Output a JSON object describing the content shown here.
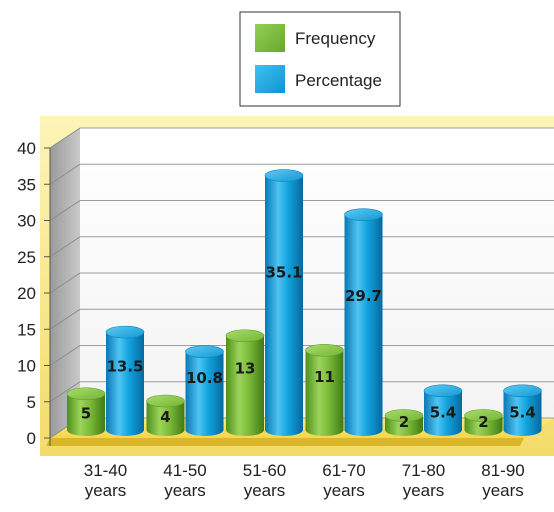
{
  "chart_data": {
    "type": "bar",
    "categories": [
      "31-40 years",
      "41-50 years",
      "51-60 years",
      "61-70 years",
      "71-80 years",
      "81-90 years"
    ],
    "category_lines": [
      [
        "31-40",
        "years"
      ],
      [
        "41-50",
        "years"
      ],
      [
        "51-60",
        "years"
      ],
      [
        "61-70",
        "years"
      ],
      [
        "71-80",
        "years"
      ],
      [
        "81-90",
        "years"
      ]
    ],
    "series": [
      {
        "name": "Frequency",
        "values": [
          5,
          4,
          13,
          11,
          2,
          2
        ],
        "labels": [
          "5",
          "4",
          "13",
          "11",
          "2",
          "2"
        ],
        "color": "#7dbd3a"
      },
      {
        "name": "Percentage",
        "values": [
          13.5,
          10.8,
          35.1,
          29.7,
          5.4,
          5.4
        ],
        "labels": [
          "13.5",
          "10.8",
          "35.1",
          "29.7",
          "5.4",
          "5.4"
        ],
        "color": "#10a3dd"
      }
    ],
    "ylim": [
      0,
      40
    ],
    "yticks": [
      "0",
      "5",
      "10",
      "15",
      "20",
      "25",
      "30",
      "35",
      "40"
    ],
    "grid": true,
    "legend_position": "top",
    "title": "",
    "xlabel": "",
    "ylabel": "",
    "style": "3d-cylinder"
  }
}
